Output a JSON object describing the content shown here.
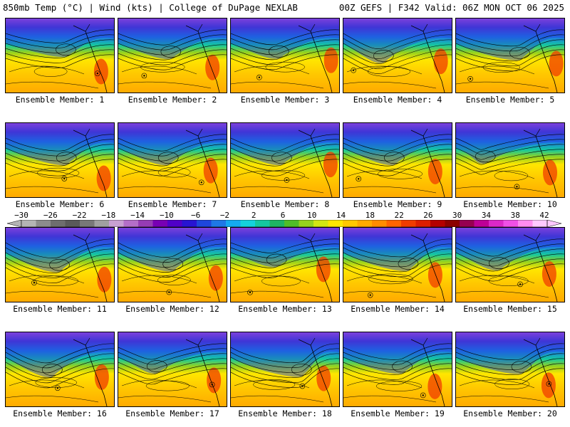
{
  "header": {
    "left": "850mb Temp (°C) | Wind (kts) | College of DuPage NEXLAB",
    "right": "00Z GEFS | F342 Valid: 06Z MON OCT 06 2025"
  },
  "colorbar": {
    "ticks": [
      "−30",
      "−26",
      "−22",
      "−18",
      "−14",
      "−10",
      "−6",
      "−2",
      "2",
      "6",
      "10",
      "14",
      "18",
      "22",
      "26",
      "30",
      "34",
      "38",
      "42"
    ],
    "colors": [
      "#b4b4b4",
      "#8c8c8c",
      "#6e6e6e",
      "#5a5a5a",
      "#787878",
      "#a0a0a0",
      "#c8a0d2",
      "#b46ec8",
      "#963cb4",
      "#7800b4",
      "#5000c8",
      "#2814d2",
      "#1e46dc",
      "#1e78e6",
      "#14aaf0",
      "#14d2dc",
      "#14c8a0",
      "#1eb464",
      "#50be28",
      "#96d21e",
      "#d2e614",
      "#ffe600",
      "#ffc800",
      "#ffaa00",
      "#ff8c00",
      "#ff6400",
      "#f03c00",
      "#dc1e00",
      "#b40000",
      "#8c0000",
      "#960050",
      "#be0096",
      "#dc28c8",
      "#f050e6",
      "#ff8cf0",
      "#ffc8ff"
    ]
  },
  "panels": [
    {
      "label": "Ensemble Member: 1"
    },
    {
      "label": "Ensemble Member: 2"
    },
    {
      "label": "Ensemble Member: 3"
    },
    {
      "label": "Ensemble Member: 4"
    },
    {
      "label": "Ensemble Member: 5"
    },
    {
      "label": "Ensemble Member: 6"
    },
    {
      "label": "Ensemble Member: 7"
    },
    {
      "label": "Ensemble Member: 8"
    },
    {
      "label": "Ensemble Member: 9"
    },
    {
      "label": "Ensemble Member: 10"
    },
    {
      "label": "Ensemble Member: 11"
    },
    {
      "label": "Ensemble Member: 12"
    },
    {
      "label": "Ensemble Member: 13"
    },
    {
      "label": "Ensemble Member: 14"
    },
    {
      "label": "Ensemble Member: 15"
    },
    {
      "label": "Ensemble Member: 16"
    },
    {
      "label": "Ensemble Member: 17"
    },
    {
      "label": "Ensemble Member: 18"
    },
    {
      "label": "Ensemble Member: 19"
    },
    {
      "label": "Ensemble Member: 20"
    }
  ]
}
